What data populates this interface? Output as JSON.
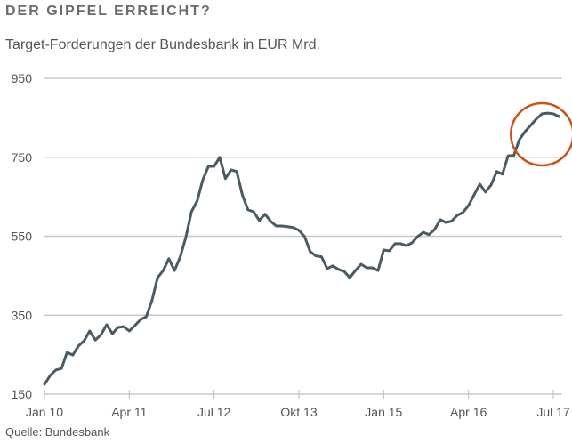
{
  "chart_data": {
    "type": "line",
    "title": "DER GIPFEL ERREICHT?",
    "subtitle": "Target-Forderungen der Bundesbank in EUR Mrd.",
    "source": "Quelle: Bundesbank",
    "xlabel": "",
    "ylabel": "",
    "ylim": [
      150,
      950
    ],
    "yticks": [
      150,
      350,
      550,
      750,
      950
    ],
    "xticks": [
      {
        "label": "Jan 10",
        "month": 0
      },
      {
        "label": "Apr 11",
        "month": 15
      },
      {
        "label": "Jul 12",
        "month": 30
      },
      {
        "label": "Okt 13",
        "month": 45
      },
      {
        "label": "Jan 15",
        "month": 60
      },
      {
        "label": "Apr 16",
        "month": 75
      },
      {
        "label": "Jul 17",
        "month": 90
      }
    ],
    "x_unit": "months since Jan 2010",
    "grid": true,
    "series": [
      {
        "name": "Target-Forderungen",
        "color": "#4a5b64",
        "values": [
          175,
          197,
          211,
          215,
          256,
          249,
          272,
          285,
          310,
          287,
          301,
          326,
          303,
          319,
          321,
          310,
          324,
          339,
          346,
          387,
          445,
          463,
          493,
          463,
          497,
          547,
          612,
          639,
          693,
          727,
          727,
          750,
          696,
          718,
          714,
          655,
          617,
          612,
          590,
          606,
          588,
          576,
          576,
          574,
          572,
          565,
          549,
          511,
          500,
          498,
          468,
          475,
          466,
          461,
          445,
          463,
          479,
          470,
          470,
          463,
          515,
          513,
          531,
          531,
          526,
          533,
          549,
          560,
          554,
          567,
          592,
          585,
          588,
          603,
          610,
          628,
          655,
          682,
          662,
          680,
          714,
          707,
          754,
          754,
          795,
          815,
          831,
          847,
          860,
          862,
          860,
          853
        ]
      }
    ],
    "annotations": [
      {
        "type": "circle",
        "around": "peak at end of series",
        "color": "#c8561a"
      }
    ]
  }
}
